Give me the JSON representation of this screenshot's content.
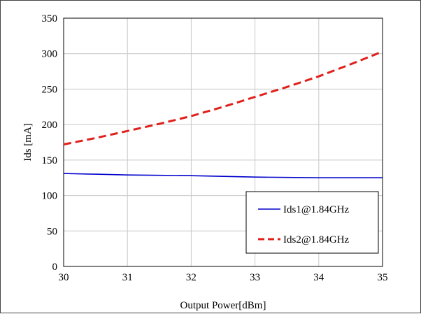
{
  "chart_data": {
    "type": "line",
    "title": "",
    "xlabel": "Output Power[dBm]",
    "ylabel": "Ids [mA]",
    "xlim": [
      30,
      35
    ],
    "ylim": [
      0,
      350
    ],
    "x_ticks": [
      30,
      31,
      32,
      33,
      34,
      35
    ],
    "y_ticks": [
      0,
      50,
      100,
      150,
      200,
      250,
      300,
      350
    ],
    "grid": true,
    "legend_position": "bottom-right",
    "x": [
      30,
      30.5,
      31,
      31.5,
      32,
      32.5,
      33,
      33.5,
      34,
      34.5,
      35
    ],
    "series": [
      {
        "name": "Ids1@1.84GHz",
        "color": "#0000cc",
        "style": "solid",
        "values": [
          131,
          130,
          129,
          128.5,
          128,
          127,
          126,
          125.5,
          125,
          125,
          125
        ]
      },
      {
        "name": "Ids2@1.84GHz",
        "color": "#e0201c",
        "style": "dashed",
        "values": [
          172,
          181,
          191,
          201,
          212,
          225,
          239,
          253,
          268,
          285,
          303
        ]
      }
    ]
  }
}
